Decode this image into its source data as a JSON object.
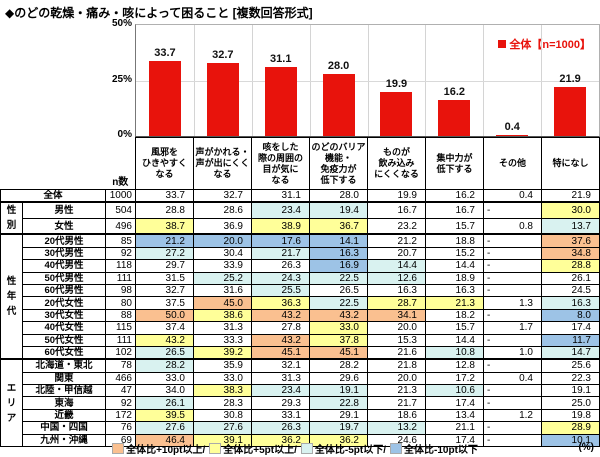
{
  "title": "◆のどの乾燥・痛み・咳によって困ること [複数回答形式]",
  "chart_data": {
    "type": "bar",
    "title": "のどの乾燥・痛み・咳によって困ること(複数回答形式)",
    "legend": "全体【n=1000】",
    "legend_position": "top-right",
    "ylim": [
      0,
      50
    ],
    "yticks": [
      50,
      25,
      0
    ],
    "ytick_suffix": "%",
    "grid": true,
    "categories": [
      "風邪を\nひきやすく\nなる",
      "声がかれる・\n声が出にくく\nなる",
      "咳をした\n際の周囲の\n目が気に\nなる",
      "のどのバリア\n機能・\n免疫力が\n低下する",
      "ものが\n飲み込み\nにくくなる",
      "集中力が\n低下する",
      "その他",
      "特になし"
    ],
    "values": [
      33.7,
      32.7,
      31.1,
      28.0,
      19.9,
      16.2,
      0.4,
      21.9
    ]
  },
  "colors": {
    "bar": "#e8130c",
    "legend_text": "#e8130c",
    "plus10": "#fac090",
    "plus5": "#ffff99",
    "minus5": "#d9f2f0",
    "minus10": "#9dc3e6"
  },
  "table": {
    "n_header": "n数",
    "groups": [
      {
        "label": "",
        "rows": [
          {
            "label": "全体",
            "n": "1000",
            "values": [
              "33.7",
              "32.7",
              "31.1",
              "28.0",
              "19.9",
              "16.2",
              "0.4",
              "21.9"
            ],
            "flags": [
              "",
              "",
              "",
              "",
              "",
              "",
              "",
              ""
            ]
          }
        ]
      },
      {
        "label": "性別",
        "rows": [
          {
            "label": "男性",
            "n": "504",
            "values": [
              "28.8",
              "28.6",
              "23.4",
              "19.4",
              "16.7",
              "16.7",
              "-",
              "30.0"
            ],
            "flags": [
              "",
              "",
              "LB",
              "LB",
              "",
              "",
              "",
              "Y"
            ]
          },
          {
            "label": "女性",
            "n": "496",
            "values": [
              "38.7",
              "36.9",
              "38.9",
              "36.7",
              "23.2",
              "15.7",
              "0.8",
              "13.7"
            ],
            "flags": [
              "Y",
              "",
              "Y",
              "Y",
              "",
              "",
              "",
              "LB"
            ]
          }
        ]
      },
      {
        "label": "性年代",
        "rows": [
          {
            "label": "20代男性",
            "n": "85",
            "values": [
              "21.2",
              "20.0",
              "17.6",
              "14.1",
              "21.2",
              "18.8",
              "-",
              "37.6"
            ],
            "flags": [
              "B",
              "B",
              "B",
              "B",
              "",
              "",
              "",
              "O"
            ]
          },
          {
            "label": "30代男性",
            "n": "92",
            "values": [
              "27.2",
              "30.4",
              "21.7",
              "16.3",
              "20.7",
              "15.2",
              "-",
              "34.8"
            ],
            "flags": [
              "LB",
              "",
              "LB",
              "B",
              "",
              "",
              "",
              "O"
            ]
          },
          {
            "label": "40代男性",
            "n": "118",
            "values": [
              "29.7",
              "33.9",
              "26.3",
              "16.9",
              "14.4",
              "14.4",
              "-",
              "28.8"
            ],
            "flags": [
              "",
              "",
              "",
              "B",
              "LB",
              "",
              "",
              "Y"
            ]
          },
          {
            "label": "50代男性",
            "n": "111",
            "values": [
              "31.5",
              "25.2",
              "24.3",
              "22.5",
              "12.6",
              "18.9",
              "-",
              "26.1"
            ],
            "flags": [
              "",
              "LB",
              "LB",
              "LB",
              "LB",
              "",
              "",
              ""
            ]
          },
          {
            "label": "60代男性",
            "n": "98",
            "values": [
              "32.7",
              "31.6",
              "25.5",
              "26.5",
              "16.3",
              "16.3",
              "-",
              "24.5"
            ],
            "flags": [
              "",
              "",
              "LB",
              "",
              "",
              "",
              "",
              ""
            ]
          },
          {
            "label": "20代女性",
            "n": "80",
            "values": [
              "37.5",
              "45.0",
              "36.3",
              "22.5",
              "28.7",
              "21.3",
              "1.3",
              "16.3"
            ],
            "flags": [
              "",
              "O",
              "Y",
              "LB",
              "Y",
              "Y",
              "",
              "LB"
            ]
          },
          {
            "label": "30代女性",
            "n": "88",
            "values": [
              "50.0",
              "38.6",
              "43.2",
              "43.2",
              "34.1",
              "18.2",
              "-",
              "8.0"
            ],
            "flags": [
              "O",
              "Y",
              "O",
              "O",
              "O",
              "",
              "",
              "B"
            ]
          },
          {
            "label": "40代女性",
            "n": "115",
            "values": [
              "37.4",
              "31.3",
              "27.8",
              "33.0",
              "20.0",
              "15.7",
              "1.7",
              "17.4"
            ],
            "flags": [
              "",
              "",
              "",
              "Y",
              "",
              "",
              "",
              ""
            ]
          },
          {
            "label": "50代女性",
            "n": "111",
            "values": [
              "43.2",
              "33.3",
              "43.2",
              "37.8",
              "15.3",
              "14.4",
              "-",
              "11.7"
            ],
            "flags": [
              "Y",
              "",
              "O",
              "Y",
              "",
              "",
              "",
              "B"
            ]
          },
          {
            "label": "60代女性",
            "n": "102",
            "values": [
              "26.5",
              "39.2",
              "45.1",
              "45.1",
              "21.6",
              "10.8",
              "1.0",
              "14.7"
            ],
            "flags": [
              "LB",
              "Y",
              "O",
              "O",
              "",
              "LB",
              "",
              "LB"
            ]
          }
        ]
      },
      {
        "label": "エリア",
        "rows": [
          {
            "label": "北海道・東北",
            "n": "78",
            "values": [
              "28.2",
              "35.9",
              "32.1",
              "28.2",
              "21.8",
              "12.8",
              "-",
              "25.6"
            ],
            "flags": [
              "LB",
              "",
              "",
              "",
              "",
              "",
              "",
              ""
            ]
          },
          {
            "label": "関東",
            "n": "466",
            "values": [
              "33.0",
              "33.0",
              "31.3",
              "29.6",
              "20.0",
              "17.2",
              "0.4",
              "22.3"
            ],
            "flags": [
              "",
              "",
              "",
              "",
              "",
              "",
              "",
              ""
            ]
          },
          {
            "label": "北陸・甲信越",
            "n": "47",
            "values": [
              "34.0",
              "38.3",
              "23.4",
              "19.1",
              "21.3",
              "10.6",
              "-",
              "19.1"
            ],
            "flags": [
              "",
              "Y",
              "LB",
              "LB",
              "",
              "LB",
              "",
              ""
            ]
          },
          {
            "label": "東海",
            "n": "92",
            "values": [
              "26.1",
              "28.3",
              "29.3",
              "22.8",
              "21.7",
              "17.4",
              "-",
              "25.0"
            ],
            "flags": [
              "LB",
              "",
              "",
              "LB",
              "",
              "",
              "",
              ""
            ]
          },
          {
            "label": "近畿",
            "n": "172",
            "values": [
              "39.5",
              "30.8",
              "33.1",
              "29.1",
              "18.6",
              "13.4",
              "1.2",
              "19.8"
            ],
            "flags": [
              "Y",
              "",
              "",
              "",
              "",
              "",
              "",
              ""
            ]
          },
          {
            "label": "中国・四国",
            "n": "76",
            "values": [
              "27.6",
              "27.6",
              "26.3",
              "19.7",
              "13.2",
              "21.1",
              "-",
              "28.9"
            ],
            "flags": [
              "LB",
              "LB",
              "LB",
              "LB",
              "LB",
              "",
              "",
              "Y"
            ]
          },
          {
            "label": "九州・沖縄",
            "n": "69",
            "values": [
              "46.4",
              "39.1",
              "36.2",
              "36.2",
              "24.6",
              "17.4",
              "-",
              "10.1"
            ],
            "flags": [
              "O",
              "Y",
              "Y",
              "Y",
              "",
              "",
              "",
              "B"
            ]
          }
        ]
      }
    ]
  },
  "footer": {
    "legend": [
      {
        "label": "全体比+10pt以上",
        "colorKey": "plus10"
      },
      {
        "label": "全体比+5pt以上",
        "colorKey": "plus5"
      },
      {
        "label": "全体比-5pt以下",
        "colorKey": "minus5"
      },
      {
        "label": "全体比-10pt以下",
        "colorKey": "minus10"
      }
    ],
    "separator": "/",
    "unit": "(%)"
  }
}
